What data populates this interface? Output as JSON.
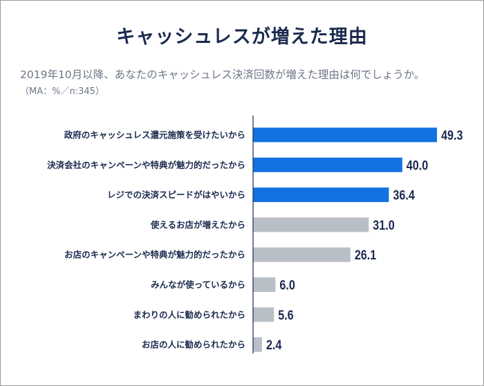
{
  "title": "キャッシュレスが増えた理由",
  "question": "2019年10月以降、あなたのキャッシュレス決済回数が増えた理由は何でしょうか。",
  "note": "（MA：%／n:345）",
  "colors": {
    "highlight": "#1272e2",
    "default": "#b9bfc6",
    "text": "#1b2a4e"
  },
  "chart_data": {
    "type": "bar",
    "orientation": "horizontal",
    "title": "キャッシュレスが増えた理由",
    "categories": [
      "政府のキャッシュレス還元施策を受けたいから",
      "決済会社のキャンペーンや特典が魅力的だったから",
      "レジでの決済スピードがはやいから",
      "使えるお店が増えたから",
      "お店のキャンペーンや特典が魅力的だったから",
      "みんなが使っているから",
      "まわりの人に勧められたから",
      "お店の人に勧められたから"
    ],
    "values": [
      49.3,
      40.0,
      36.4,
      31.0,
      26.1,
      6.0,
      5.6,
      2.4
    ],
    "value_labels": [
      "49.3",
      "40.0",
      "36.4",
      "31.0",
      "26.1",
      "6.0",
      "5.6",
      "2.4"
    ],
    "highlighted": [
      true,
      true,
      true,
      false,
      false,
      false,
      false,
      false
    ],
    "xlim": [
      0,
      55
    ],
    "grid": false,
    "legend": "none"
  }
}
